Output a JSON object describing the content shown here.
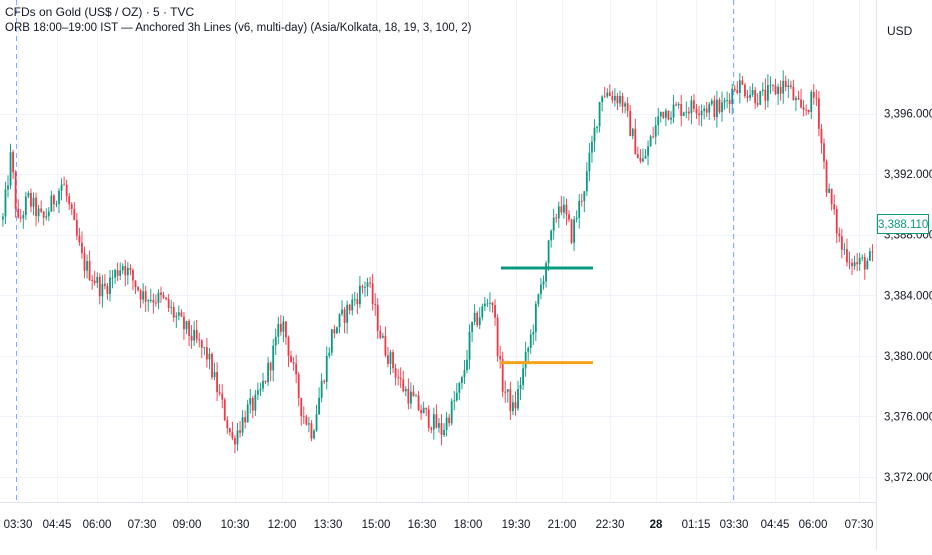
{
  "header": {
    "symbol_line": "CFDs on Gold (US$ / OZ) · 5 · TVC",
    "indicator_line": "ORB 18:00–19:00 IST — Anchored 3h Lines (v6, multi-day) (Asia/Kolkata, 18, 19, 3, 100, 2)"
  },
  "price_axis": {
    "unit": "USD",
    "last_price": "3,388.110",
    "last_price_color": "#089981"
  },
  "colors": {
    "up": "#089981",
    "down": "#f23645",
    "orb_high": "#089981",
    "orb_low": "#f7a21b",
    "session_divider": "#2962ff",
    "grid": "#f0f3fa"
  },
  "chart_data": {
    "type": "candlestick",
    "interval": "5m",
    "y_ticks": [
      "3,372.000",
      "3,376.000",
      "3,380.000",
      "3,384.000",
      "3,388.000",
      "3,392.000",
      "3,396.000"
    ],
    "y_tick_values": [
      3372,
      3376,
      3380,
      3384,
      3388,
      3392,
      3396
    ],
    "ylim": [
      3370.85,
      3400.2
    ],
    "x_ticks": [
      "03:30",
      "04:45",
      "06:00",
      "07:30",
      "09:00",
      "10:30",
      "12:00",
      "13:30",
      "15:00",
      "16:30",
      "18:00",
      "19:30",
      "21:00",
      "22:30",
      "28",
      "01:15",
      "03:30",
      "04:45",
      "06:00",
      "07:30"
    ],
    "x_tick_bold": "28",
    "session_breaks": [
      "03:30",
      "03:30"
    ],
    "price_path": [
      {
        "t": 0,
        "p": 3389.0
      },
      {
        "t": 8,
        "p": 3393.2
      },
      {
        "t": 15,
        "p": 3388.6
      },
      {
        "t": 25,
        "p": 3390.4
      },
      {
        "t": 40,
        "p": 3388.9
      },
      {
        "t": 60,
        "p": 3391.5
      },
      {
        "t": 80,
        "p": 3386.2
      },
      {
        "t": 100,
        "p": 3384.3
      },
      {
        "t": 120,
        "p": 3386.1
      },
      {
        "t": 140,
        "p": 3384.0
      },
      {
        "t": 160,
        "p": 3383.7
      },
      {
        "t": 180,
        "p": 3382.0
      },
      {
        "t": 205,
        "p": 3380.0
      },
      {
        "t": 230,
        "p": 3374.4
      },
      {
        "t": 245,
        "p": 3376.4
      },
      {
        "t": 255,
        "p": 3377.0
      },
      {
        "t": 265,
        "p": 3378.9
      },
      {
        "t": 280,
        "p": 3382.4
      },
      {
        "t": 300,
        "p": 3376.3
      },
      {
        "t": 310,
        "p": 3375.0
      },
      {
        "t": 330,
        "p": 3381.5
      },
      {
        "t": 365,
        "p": 3385.0
      },
      {
        "t": 380,
        "p": 3381.0
      },
      {
        "t": 400,
        "p": 3378.0
      },
      {
        "t": 420,
        "p": 3376.3
      },
      {
        "t": 440,
        "p": 3375.0
      },
      {
        "t": 460,
        "p": 3378.2
      },
      {
        "t": 470,
        "p": 3381.9
      },
      {
        "t": 490,
        "p": 3384.0
      },
      {
        "t": 500,
        "p": 3378.2
      },
      {
        "t": 512,
        "p": 3376.3
      },
      {
        "t": 530,
        "p": 3381.5
      },
      {
        "t": 545,
        "p": 3386.5
      },
      {
        "t": 558,
        "p": 3390.3
      },
      {
        "t": 570,
        "p": 3388.0
      },
      {
        "t": 585,
        "p": 3391.8
      },
      {
        "t": 600,
        "p": 3397.5
      },
      {
        "t": 620,
        "p": 3397.0
      },
      {
        "t": 640,
        "p": 3392.5
      },
      {
        "t": 660,
        "p": 3396.2
      },
      {
        "t": 700,
        "p": 3396.5
      },
      {
        "t": 720,
        "p": 3396.3
      },
      {
        "t": 735,
        "p": 3398.0
      },
      {
        "t": 760,
        "p": 3397.0
      },
      {
        "t": 785,
        "p": 3398.0
      },
      {
        "t": 800,
        "p": 3396.0
      },
      {
        "t": 815,
        "p": 3397.2
      },
      {
        "t": 825,
        "p": 3391.5
      },
      {
        "t": 840,
        "p": 3387.2
      },
      {
        "t": 855,
        "p": 3386.0
      },
      {
        "t": 876,
        "p": 3386.5
      }
    ],
    "orb_lines": [
      {
        "name": "ORB High",
        "value": 3385.8,
        "start": "18:30",
        "end": "21:30",
        "color": "#089981"
      },
      {
        "name": "ORB Low",
        "value": 3379.55,
        "start": "18:30",
        "end": "21:30",
        "color": "#f7a21b"
      }
    ],
    "grid": true,
    "legend": "none"
  }
}
